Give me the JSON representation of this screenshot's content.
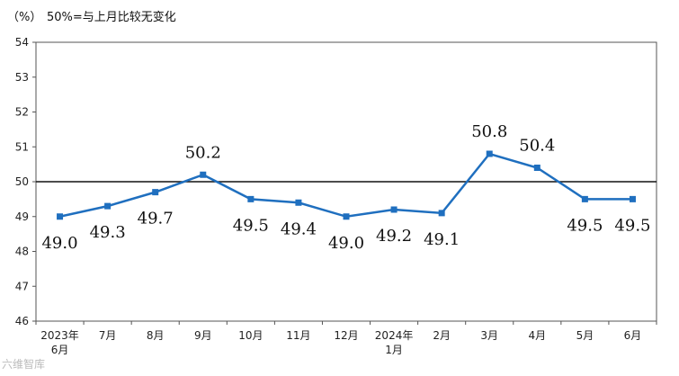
{
  "unit_label": "（%）",
  "note": "50%=与上月比较无变化",
  "watermark": "六维智库",
  "chart_data": {
    "type": "line",
    "categories": [
      [
        "2023年",
        "6月"
      ],
      [
        "7月"
      ],
      [
        "8月"
      ],
      [
        "9月"
      ],
      [
        "10月"
      ],
      [
        "11月"
      ],
      [
        "12月"
      ],
      [
        "2024年",
        "1月"
      ],
      [
        "2月"
      ],
      [
        "3月"
      ],
      [
        "4月"
      ],
      [
        "5月"
      ],
      [
        "6月"
      ]
    ],
    "series": [
      {
        "values": [
          49.0,
          49.3,
          49.7,
          50.2,
          49.5,
          49.4,
          49.0,
          49.2,
          49.1,
          50.8,
          50.4,
          49.5,
          49.5
        ]
      }
    ],
    "data_labels": [
      "49.0",
      "49.3",
      "49.7",
      "50.2",
      "49.5",
      "49.4",
      "49.0",
      "49.2",
      "49.1",
      "50.8",
      "50.4",
      "49.5",
      "49.5"
    ],
    "label_side": [
      "below",
      "below",
      "below",
      "above",
      "below",
      "below",
      "below",
      "below",
      "below",
      "above",
      "above",
      "below",
      "below"
    ],
    "ylim": [
      46,
      54
    ],
    "yticks": [
      "46",
      "47",
      "48",
      "49",
      "50",
      "51",
      "52",
      "53",
      "54"
    ],
    "reference_line": 50,
    "line_color": "#1f6fbf",
    "grid": false
  }
}
